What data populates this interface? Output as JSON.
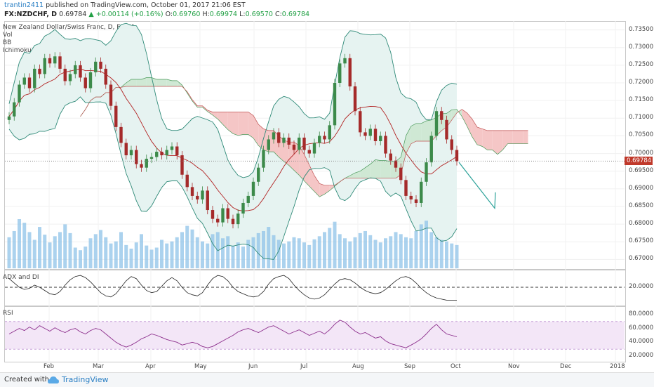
{
  "header": {
    "author": "trantin2411",
    "published": " published on TradingView.com, October 01, 2017 21:06 EST",
    "symbol": "FX:NZDCHF, D",
    "last": "0.69784",
    "change": "+0.00114 (+0.16%)",
    "open_label": "O:",
    "open": "0.69760",
    "high_label": "H:",
    "high": "0.69974",
    "low_label": "L:",
    "low": "0.69570",
    "close_label": "C:",
    "close": "0.69784"
  },
  "legend": {
    "title": "New Zealand Dollar/Swiss Franc, D, FXCM",
    "vol": "Vol",
    "bb": "BB",
    "ichimoku": "Ichimoku"
  },
  "price_tag": "0.69784",
  "adx_label": "ADX and DI",
  "rsi_label": "RSI",
  "footer": {
    "created": "Created with",
    "brand": "TradingView"
  },
  "colors": {
    "up": "#3c8a4a",
    "down": "#a52a2a",
    "cloud_bull": "#cfe8d4",
    "cloud_bear": "#f5c6c6",
    "bb_fill": "#e6f3f1",
    "volume": "#8fc3e8",
    "rsi": "#8b2d8b",
    "tag": "#c0392b"
  },
  "chart_data": [
    {
      "type": "candlestick",
      "title": "New Zealand Dollar/Swiss Franc, D, FXCM",
      "y_ticks": [
        "0.73500",
        "0.73000",
        "0.72500",
        "0.72000",
        "0.71500",
        "0.71000",
        "0.70500",
        "0.70000",
        "0.69500",
        "0.69000",
        "0.68500",
        "0.68000",
        "0.67500",
        "0.67000"
      ],
      "ylim": [
        0.6675,
        0.7375
      ],
      "x_ticks": [
        "Feb",
        "Mar",
        "Apr",
        "May",
        "Jun",
        "Jul",
        "Aug",
        "Sep",
        "Oct",
        "Nov",
        "Dec",
        "2018"
      ],
      "last_close": 0.69784,
      "series": [
        {
          "name": "close",
          "values": [
            0.7105,
            0.7145,
            0.7195,
            0.7215,
            0.7185,
            0.724,
            0.7225,
            0.727,
            0.7255,
            0.7275,
            0.724,
            0.7205,
            0.7225,
            0.725,
            0.7215,
            0.7185,
            0.723,
            0.726,
            0.724,
            0.7195,
            0.7135,
            0.7075,
            0.703,
            0.6995,
            0.701,
            0.697,
            0.696,
            0.6985,
            0.699,
            0.7005,
            0.6995,
            0.701,
            0.702,
            0.6995,
            0.694,
            0.6905,
            0.688,
            0.687,
            0.6895,
            0.684,
            0.6815,
            0.6805,
            0.6845,
            0.6815,
            0.68,
            0.683,
            0.686,
            0.688,
            0.692,
            0.696,
            0.701,
            0.704,
            0.706,
            0.703,
            0.7045,
            0.7025,
            0.701,
            0.7045,
            0.701,
            0.7,
            0.703,
            0.705,
            0.704,
            0.708,
            0.72,
            0.7255,
            0.727,
            0.719,
            0.712,
            0.706,
            0.705,
            0.707,
            0.7035,
            0.705,
            0.7,
            0.698,
            0.696,
            0.6925,
            0.688,
            0.687,
            0.686,
            0.692,
            0.6975,
            0.705,
            0.712,
            0.7095,
            0.704,
            0.701,
            0.6978
          ]
        },
        {
          "name": "volume",
          "values": [
            60,
            72,
            95,
            88,
            70,
            55,
            80,
            65,
            50,
            62,
            70,
            85,
            68,
            40,
            35,
            42,
            58,
            66,
            74,
            60,
            48,
            52,
            70,
            45,
            38,
            50,
            66,
            44,
            36,
            40,
            55,
            48,
            52,
            60,
            70,
            82,
            75,
            60,
            52,
            48,
            66,
            70,
            58,
            62,
            44,
            50,
            42,
            55,
            60,
            68,
            72,
            80,
            64,
            55,
            48,
            52,
            60,
            58,
            50,
            45,
            56,
            62,
            70,
            78,
            90,
            66,
            58,
            52,
            60,
            68,
            72,
            64,
            55,
            50,
            58,
            62,
            70,
            66,
            60,
            58,
            72,
            85,
            92,
            70,
            60,
            55,
            52,
            48,
            45
          ]
        }
      ]
    },
    {
      "type": "line",
      "title": "ADX and DI",
      "y_ticks": [
        "20.0000"
      ],
      "series": [
        {
          "name": "ADX",
          "values": [
            28,
            24,
            20,
            18,
            19,
            22,
            20,
            17,
            14,
            13,
            16,
            22,
            27,
            30,
            31,
            29,
            25,
            20,
            15,
            12,
            11,
            14,
            20,
            26,
            30,
            28,
            22,
            17,
            15,
            16,
            21,
            26,
            29,
            26,
            20,
            15,
            13,
            12,
            15,
            22,
            28,
            31,
            30,
            26,
            20,
            16,
            14,
            12,
            11,
            12,
            16,
            23,
            28,
            30,
            31,
            28,
            22,
            17,
            13,
            10,
            9,
            10,
            13,
            18,
            23,
            27,
            28,
            27,
            24,
            20,
            17,
            15,
            14,
            15,
            18,
            22,
            26,
            29,
            30,
            28,
            24,
            19,
            15,
            12,
            10,
            9,
            8,
            8,
            8
          ]
        }
      ]
    },
    {
      "type": "line",
      "title": "RSI",
      "y_ticks": [
        "80.0000",
        "60.0000",
        "40.0000",
        "20.0000"
      ],
      "series": [
        {
          "name": "RSI",
          "values": [
            52,
            56,
            60,
            57,
            62,
            58,
            64,
            60,
            56,
            61,
            57,
            54,
            58,
            60,
            55,
            52,
            57,
            60,
            58,
            52,
            46,
            40,
            36,
            33,
            36,
            40,
            45,
            48,
            52,
            50,
            47,
            44,
            42,
            40,
            36,
            38,
            40,
            38,
            34,
            32,
            34,
            38,
            42,
            46,
            50,
            55,
            58,
            60,
            57,
            54,
            58,
            62,
            64,
            60,
            56,
            52,
            55,
            58,
            54,
            50,
            53,
            56,
            52,
            58,
            66,
            72,
            69,
            62,
            56,
            52,
            54,
            50,
            46,
            48,
            42,
            38,
            36,
            34,
            32,
            36,
            40,
            45,
            52,
            60,
            66,
            58,
            52,
            50,
            48
          ]
        }
      ]
    }
  ]
}
